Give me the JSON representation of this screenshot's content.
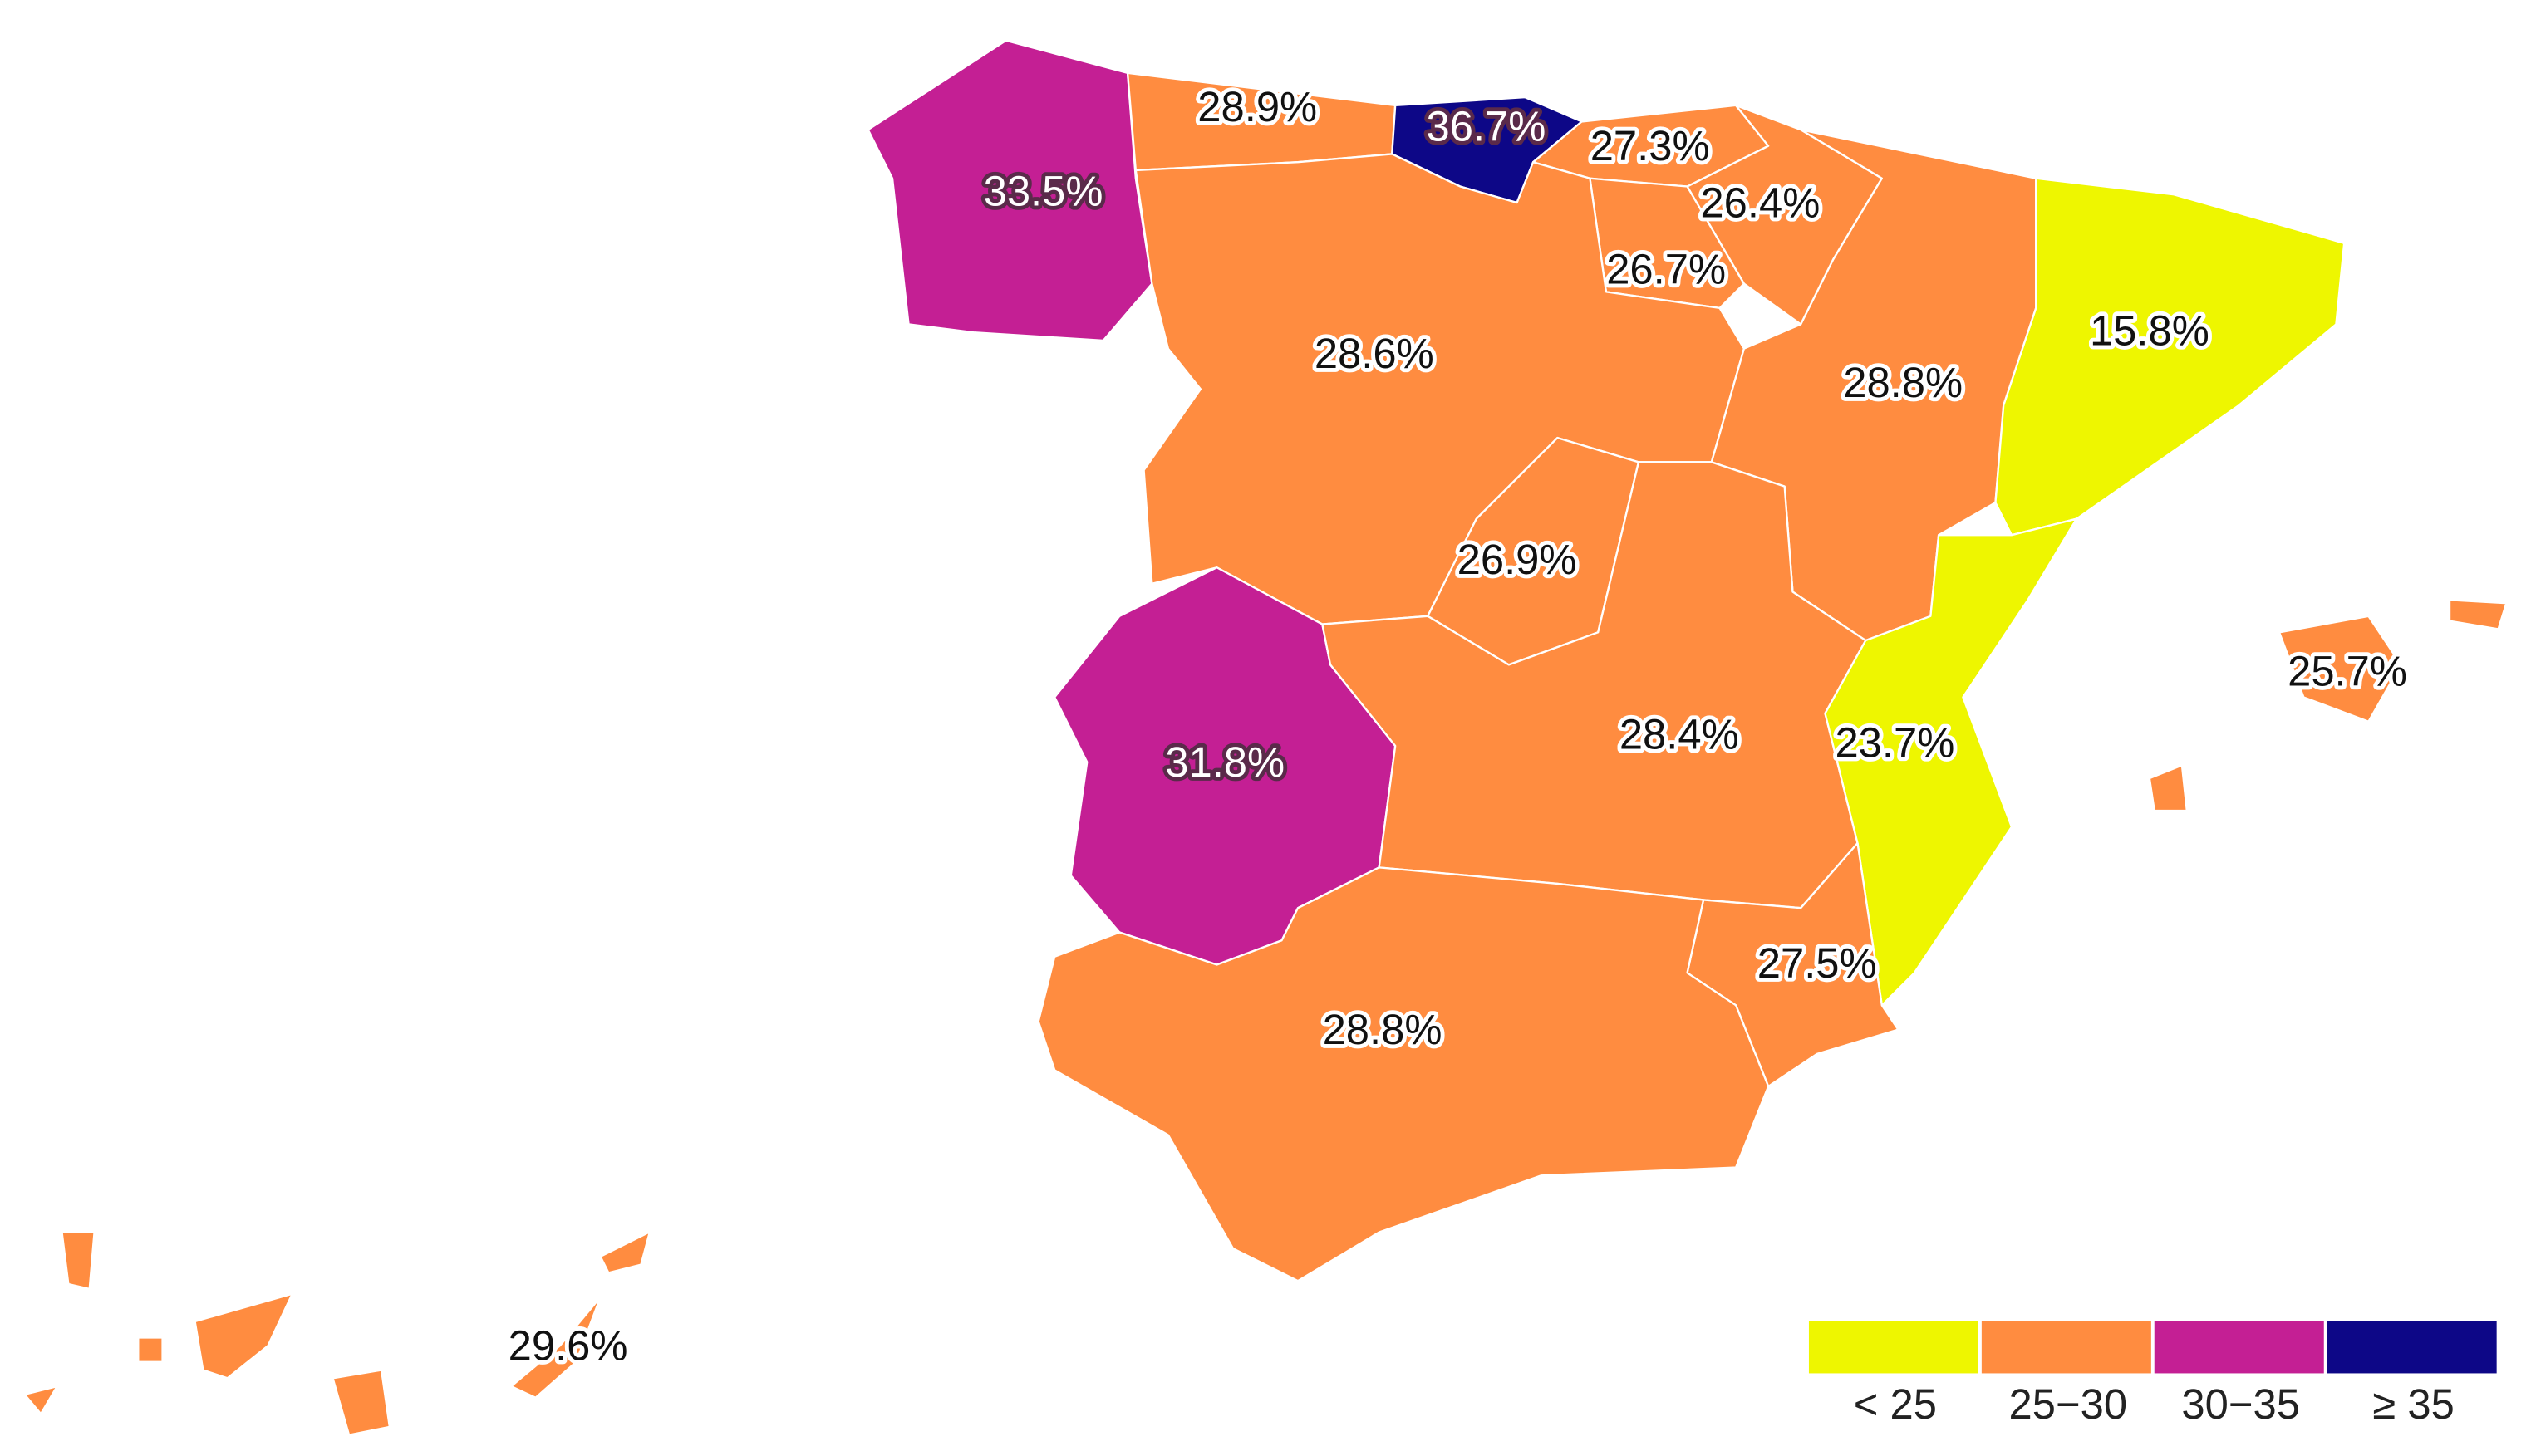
{
  "chart_data": {
    "type": "choropleth",
    "values": [
      33.5,
      28.9,
      36.7,
      27.3,
      26.4,
      26.7,
      28.6,
      28.8,
      15.8,
      26.9,
      31.8,
      28.4,
      23.7,
      25.7,
      27.5,
      28.8,
      29.6
    ],
    "value_labels": [
      "33.5%",
      "28.9%",
      "36.7%",
      "27.3%",
      "26.4%",
      "26.7%",
      "28.6%",
      "28.8%",
      "15.8%",
      "26.9%",
      "31.8%",
      "28.4%",
      "23.7%",
      "25.7%",
      "27.5%",
      "28.8%",
      "29.6%"
    ],
    "legend": {
      "labels": [
        "< 25",
        "25−30",
        "30−35",
        "≥ 35"
      ],
      "breaks": [
        25,
        30,
        35
      ],
      "colors": [
        "#eef600",
        "#ff8c40",
        "#c41f94",
        "#0d0787"
      ]
    }
  }
}
